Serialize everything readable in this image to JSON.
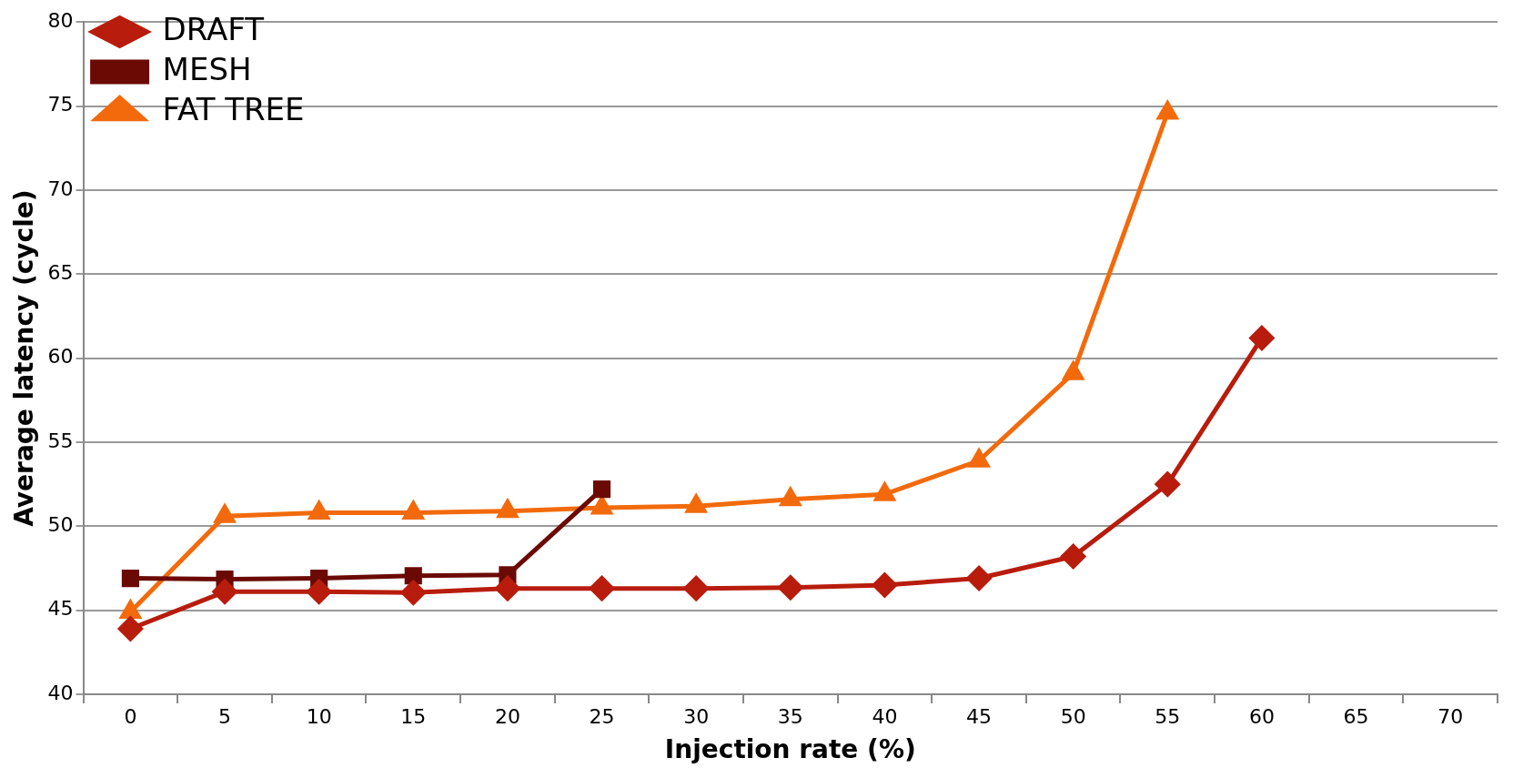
{
  "chart_data": {
    "type": "line",
    "xlabel": "Injection rate (%)",
    "ylabel": "Average latency (cycle)",
    "categories": [
      "0",
      "5",
      "10",
      "15",
      "20",
      "25",
      "30",
      "35",
      "40",
      "45",
      "50",
      "55",
      "60",
      "65",
      "70"
    ],
    "series": [
      {
        "name": "DRAFT",
        "color": "#b81c0c",
        "marker": "diamond",
        "values": [
          43.9,
          46.1,
          46.1,
          46.05,
          46.3,
          46.3,
          46.3,
          46.35,
          46.5,
          46.9,
          48.2,
          52.5,
          61.2,
          null,
          null
        ]
      },
      {
        "name": "MESH",
        "color": "#6b0a04",
        "marker": "square",
        "values": [
          46.9,
          46.85,
          46.9,
          47.05,
          47.1,
          52.2,
          null,
          null,
          null,
          null,
          null,
          null,
          null,
          null,
          null
        ]
      },
      {
        "name": "FAT TREE",
        "color": "#f26a0c",
        "marker": "triangle",
        "values": [
          44.9,
          50.6,
          50.8,
          50.8,
          50.9,
          51.1,
          51.2,
          51.6,
          51.9,
          53.9,
          59.1,
          74.6,
          null,
          null,
          null
        ]
      }
    ],
    "ylim": [
      40,
      80
    ],
    "yticks": [
      40,
      45,
      50,
      55,
      60,
      65,
      70,
      75,
      80
    ],
    "grid": "y",
    "legend": "top left"
  }
}
